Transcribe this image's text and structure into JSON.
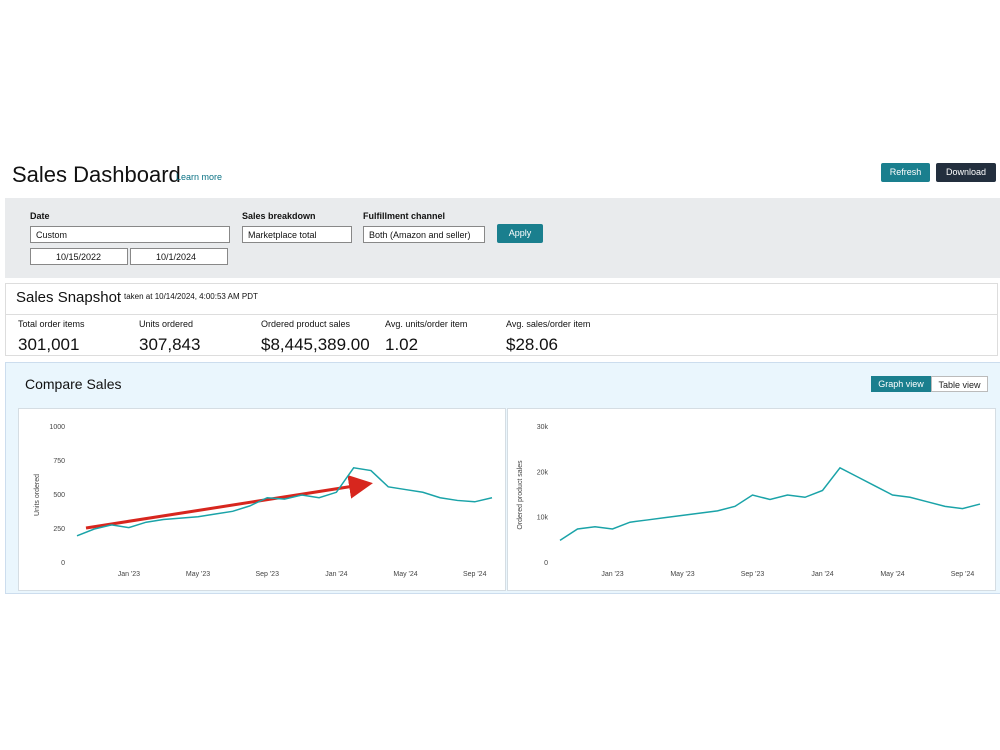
{
  "header": {
    "title": "Sales Dashboard",
    "learn_more": "Learn more",
    "refresh": "Refresh",
    "download": "Download"
  },
  "filters": {
    "date_label": "Date",
    "date_value": "Custom",
    "start": "10/15/2022",
    "end": "10/1/2024",
    "breakdown_label": "Sales breakdown",
    "breakdown_value": "Marketplace total",
    "channel_label": "Fulfillment channel",
    "channel_value": "Both (Amazon and seller)",
    "apply": "Apply"
  },
  "snapshot": {
    "title": "Sales Snapshot",
    "taken": "taken at 10/14/2024, 4:00:53 AM PDT",
    "metrics": [
      {
        "label": "Total order items",
        "value": "301,001"
      },
      {
        "label": "Units ordered",
        "value": "307,843"
      },
      {
        "label": "Ordered product sales",
        "value": "$8,445,389.00"
      },
      {
        "label": "Avg. units/order item",
        "value": "1.02"
      },
      {
        "label": "Avg. sales/order item",
        "value": "$28.06"
      }
    ]
  },
  "compare": {
    "title": "Compare Sales",
    "graph_view": "Graph view",
    "table_view": "Table view"
  },
  "chart_data": [
    {
      "type": "line",
      "ylabel": "Units ordered",
      "x": [
        "Oct '22",
        "Nov '22",
        "Dec '22",
        "Jan '23",
        "Feb '23",
        "Mar '23",
        "Apr '23",
        "May '23",
        "Jun '23",
        "Jul '23",
        "Aug '23",
        "Sep '23",
        "Oct '23",
        "Nov '23",
        "Dec '23",
        "Jan '24",
        "Feb '24",
        "Mar '24",
        "Apr '24",
        "May '24",
        "Jun '24",
        "Jul '24",
        "Aug '24",
        "Sep '24",
        "Oct '24"
      ],
      "series": [
        {
          "color": "#1aa3a8",
          "values": [
            200,
            250,
            280,
            260,
            300,
            320,
            330,
            340,
            360,
            380,
            420,
            480,
            470,
            500,
            480,
            520,
            700,
            680,
            560,
            540,
            520,
            480,
            460,
            450,
            480
          ]
        }
      ],
      "ylim": [
        0,
        1000
      ],
      "yticks": [
        0,
        250,
        500,
        750,
        1000
      ],
      "xticks": [
        "Jan '23",
        "May '23",
        "Sep '23",
        "Jan '24",
        "May '24",
        "Sep '24"
      ]
    },
    {
      "type": "line",
      "ylabel": "Ordered product sales",
      "x": [
        "Oct '22",
        "Nov '22",
        "Dec '22",
        "Jan '23",
        "Feb '23",
        "Mar '23",
        "Apr '23",
        "May '23",
        "Jun '23",
        "Jul '23",
        "Aug '23",
        "Sep '23",
        "Oct '23",
        "Nov '23",
        "Dec '23",
        "Jan '24",
        "Feb '24",
        "Mar '24",
        "Apr '24",
        "May '24",
        "Jun '24",
        "Jul '24",
        "Aug '24",
        "Sep '24",
        "Oct '24"
      ],
      "series": [
        {
          "color": "#1aa3a8",
          "values": [
            5000,
            7500,
            8000,
            7500,
            9000,
            9500,
            10000,
            10500,
            11000,
            11500,
            12500,
            15000,
            14000,
            15000,
            14500,
            16000,
            21000,
            19000,
            17000,
            15000,
            14500,
            13500,
            12500,
            12000,
            13000
          ]
        }
      ],
      "ylim": [
        0,
        30000
      ],
      "yticks": [
        0,
        {
          "value": 10000,
          "label": "10k"
        },
        {
          "value": 20000,
          "label": "20k"
        },
        {
          "value": 30000,
          "label": "30k"
        }
      ],
      "xticks": [
        "Jan '23",
        "May '23",
        "Sep '23",
        "Jan '24",
        "May '24",
        "Sep '24"
      ]
    }
  ]
}
